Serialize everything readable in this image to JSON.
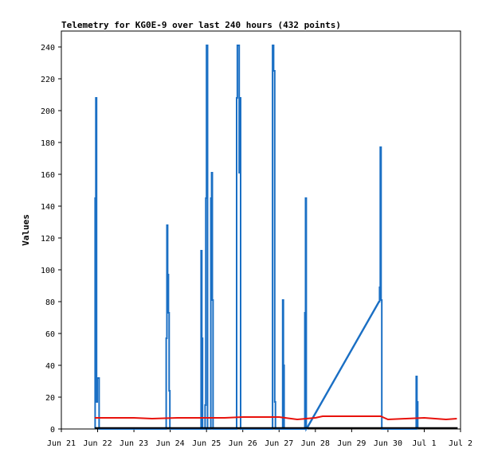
{
  "chart_data": {
    "type": "line",
    "title": "Telemetry for KG0E-9 over last 240 hours (432 points)",
    "xlabel": "",
    "ylabel": "Values",
    "x_ticks": [
      "Jun 21",
      "Jun 22",
      "Jun 23",
      "Jun 24",
      "Jun 25",
      "Jun 26",
      "Jun 27",
      "Jun 28",
      "Jun 29",
      "Jun 30",
      "Jul 1",
      "Jul 2"
    ],
    "ylim": [
      0,
      250
    ],
    "y_ticks": [
      0,
      20,
      40,
      60,
      80,
      100,
      120,
      140,
      160,
      180,
      200,
      220,
      240
    ],
    "xlim_days": [
      0,
      11
    ],
    "grid": false,
    "legend": "none",
    "series": [
      {
        "color": "#1a6fc4",
        "points": [
          [
            0.93,
            0
          ],
          [
            0.93,
            145
          ],
          [
            0.95,
            145
          ],
          [
            0.95,
            208
          ],
          [
            0.97,
            208
          ],
          [
            0.97,
            17
          ],
          [
            0.99,
            17
          ],
          [
            0.99,
            32
          ],
          [
            1.02,
            32
          ],
          [
            1.02,
            32
          ],
          [
            1.04,
            32
          ],
          [
            1.04,
            0
          ],
          [
            2.89,
            0
          ],
          [
            2.89,
            57
          ],
          [
            2.91,
            57
          ],
          [
            2.91,
            128
          ],
          [
            2.93,
            128
          ],
          [
            2.93,
            97
          ],
          [
            2.95,
            97
          ],
          [
            2.95,
            73
          ],
          [
            2.97,
            73
          ],
          [
            2.97,
            24
          ],
          [
            2.99,
            24
          ],
          [
            2.99,
            0
          ],
          [
            3.85,
            0
          ],
          [
            3.85,
            112
          ],
          [
            3.87,
            112
          ],
          [
            3.87,
            57
          ],
          [
            3.89,
            57
          ],
          [
            3.89,
            0
          ],
          [
            3.96,
            0
          ],
          [
            3.96,
            15
          ],
          [
            3.98,
            15
          ],
          [
            3.98,
            145
          ],
          [
            4.0,
            145
          ],
          [
            4.0,
            241
          ],
          [
            4.03,
            241
          ],
          [
            4.03,
            0
          ],
          [
            4.12,
            0
          ],
          [
            4.12,
            145
          ],
          [
            4.14,
            145
          ],
          [
            4.14,
            161
          ],
          [
            4.16,
            161
          ],
          [
            4.16,
            81
          ],
          [
            4.18,
            81
          ],
          [
            4.18,
            0
          ],
          [
            4.83,
            0
          ],
          [
            4.83,
            208
          ],
          [
            4.85,
            208
          ],
          [
            4.85,
            241
          ],
          [
            4.9,
            241
          ],
          [
            4.9,
            161
          ],
          [
            4.92,
            161
          ],
          [
            4.92,
            208
          ],
          [
            4.94,
            208
          ],
          [
            4.94,
            0
          ],
          [
            5.82,
            0
          ],
          [
            5.82,
            241
          ],
          [
            5.85,
            241
          ],
          [
            5.85,
            225
          ],
          [
            5.88,
            225
          ],
          [
            5.88,
            17
          ],
          [
            5.9,
            17
          ],
          [
            5.9,
            0
          ],
          [
            6.1,
            0
          ],
          [
            6.1,
            81
          ],
          [
            6.12,
            81
          ],
          [
            6.12,
            40
          ],
          [
            6.14,
            40
          ],
          [
            6.14,
            0
          ],
          [
            6.71,
            0
          ],
          [
            6.71,
            73
          ],
          [
            6.73,
            73
          ],
          [
            6.73,
            145
          ],
          [
            6.75,
            145
          ],
          [
            6.75,
            0
          ],
          [
            8.75,
            80
          ],
          [
            8.77,
            80
          ],
          [
            8.77,
            89
          ],
          [
            8.79,
            89
          ],
          [
            8.79,
            177
          ],
          [
            8.81,
            177
          ],
          [
            8.81,
            81
          ],
          [
            8.83,
            81
          ],
          [
            8.83,
            0
          ],
          [
            9.78,
            0
          ],
          [
            9.78,
            33
          ],
          [
            9.8,
            33
          ],
          [
            9.8,
            17
          ],
          [
            9.82,
            17
          ],
          [
            9.82,
            0
          ]
        ],
        "extra_segments": [
          [
            [
              6.76,
              0
            ],
            [
              8.76,
              80
            ]
          ]
        ]
      },
      {
        "color": "#e8120c",
        "points": [
          [
            0.92,
            7
          ],
          [
            2.0,
            7
          ],
          [
            2.5,
            6.5
          ],
          [
            3.2,
            7
          ],
          [
            4.5,
            7
          ],
          [
            5.0,
            7.5
          ],
          [
            6.0,
            7.5
          ],
          [
            6.5,
            6
          ],
          [
            7.0,
            7
          ],
          [
            7.2,
            8
          ],
          [
            8.0,
            8
          ],
          [
            8.5,
            8
          ],
          [
            8.8,
            8
          ],
          [
            9.0,
            6
          ],
          [
            9.5,
            6.5
          ],
          [
            10.0,
            7
          ],
          [
            10.6,
            6
          ],
          [
            10.9,
            6.5
          ]
        ]
      },
      {
        "color": "#000000",
        "points": [
          [
            0.92,
            0.6
          ],
          [
            10.92,
            0.6
          ]
        ]
      }
    ]
  }
}
